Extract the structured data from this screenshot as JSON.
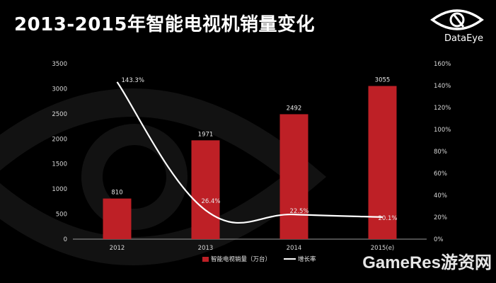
{
  "header": {
    "title": "2013-2015年智能电视机销量变化",
    "logo_text": "DataEye"
  },
  "watermark": "GameRes游资网",
  "colors": {
    "bar": "#be2026",
    "line": "#ffffff",
    "background": "#000000"
  },
  "chart_data": {
    "type": "bar",
    "title": "2013-2015年智能电视机销量变化",
    "categories": [
      "2012",
      "2013",
      "2014",
      "2015(e)"
    ],
    "series": [
      {
        "name": "智能电视销量（万台）",
        "type": "bar",
        "axis": "left",
        "values": [
          810,
          1971,
          2492,
          3055
        ],
        "labels": [
          "810",
          "1971",
          "2492",
          "3055"
        ]
      },
      {
        "name": "增长率",
        "type": "line",
        "axis": "right",
        "values": [
          143.3,
          26.4,
          22.5,
          20.1
        ],
        "labels": [
          "143.3%",
          "26.4%",
          "22.5%",
          "20.1%"
        ]
      }
    ],
    "ylim_left": [
      0,
      3500
    ],
    "yticks_left": [
      "0",
      "500",
      "1000",
      "1500",
      "2000",
      "2500",
      "3000",
      "3500"
    ],
    "ylim_right": [
      0,
      160
    ],
    "yticks_right": [
      "0%",
      "20%",
      "40%",
      "60%",
      "80%",
      "100%",
      "120%",
      "140%",
      "160%"
    ],
    "grid": false,
    "legend_position": "bottom"
  }
}
